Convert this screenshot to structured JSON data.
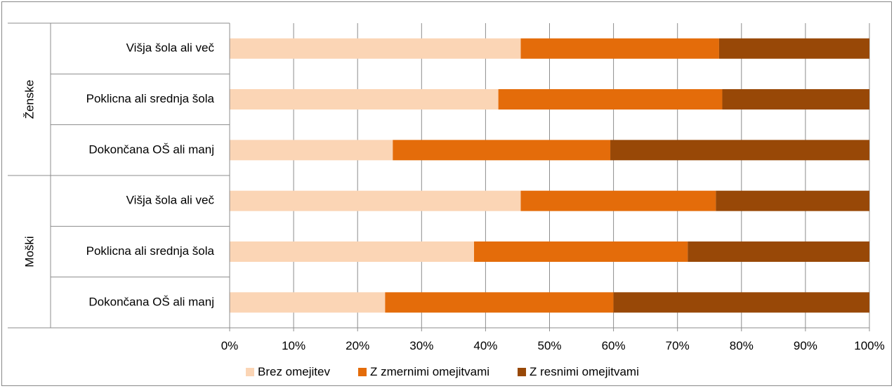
{
  "chart_data": {
    "type": "bar",
    "orientation": "horizontal",
    "stacked": "percent",
    "title": "",
    "xlabel": "",
    "ylabel": "",
    "xlim": [
      0,
      100
    ],
    "x_ticks": [
      "0%",
      "10%",
      "20%",
      "30%",
      "40%",
      "50%",
      "60%",
      "70%",
      "80%",
      "90%",
      "100%"
    ],
    "grid": true,
    "legend_position": "bottom",
    "groups": [
      {
        "label": "Ženske",
        "categories": [
          "Višja šola ali več",
          "Poklicna ali srednja šola",
          "Dokončana OŠ ali manj"
        ]
      },
      {
        "label": "Moški",
        "categories": [
          "Višja šola ali več",
          "Poklicna ali srednja šola",
          "Dokončana OŠ ali manj"
        ]
      }
    ],
    "series": [
      {
        "name": "Brez omejitev",
        "color": "#FBD5B5",
        "values": [
          45.5,
          42,
          25.5,
          45.5,
          38.2,
          24.3
        ]
      },
      {
        "name": "Z zmernimi omejitvami",
        "color": "#E46C0A",
        "values": [
          31,
          35,
          34,
          30.5,
          33.4,
          35.7
        ]
      },
      {
        "name": "Z resnimi omejitvami",
        "color": "#984807",
        "values": [
          23.5,
          23,
          40.5,
          24,
          28.4,
          40
        ]
      }
    ]
  }
}
